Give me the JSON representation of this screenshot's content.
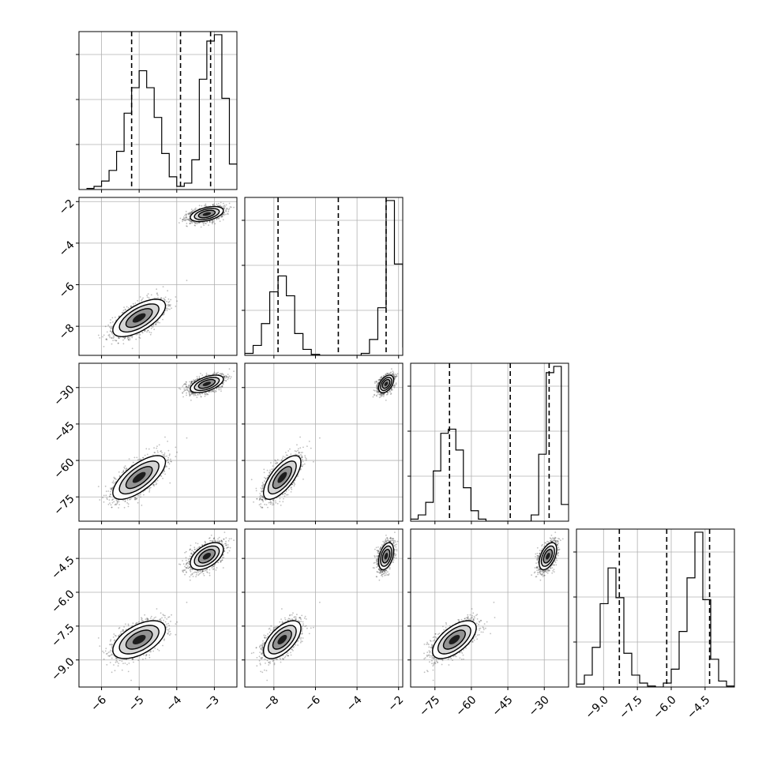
{
  "chart_data": {
    "type": "corner",
    "title": "",
    "grid": true,
    "colors": {
      "line": "#000000",
      "grid": "#b0b0b0",
      "scatter": "#1a1a1a",
      "fill_light": "#d0d0d0",
      "fill_mid": "#8c8c8c",
      "fill_dark": "#111111"
    },
    "parameters": [
      {
        "name": "",
        "range": [
          -6.6,
          -2.4
        ],
        "ticks": [
          -6,
          -5,
          -4,
          -3
        ],
        "tick_labels": [
          "−6",
          "−5",
          "−4",
          "−3"
        ]
      },
      {
        "name": "",
        "range": [
          -9.4,
          -1.8
        ],
        "ticks": [
          -8,
          -6,
          -4,
          -2
        ],
        "tick_labels": [
          "−8",
          "−6",
          "−4",
          "−2"
        ]
      },
      {
        "name": "",
        "range": [
          -85,
          -20
        ],
        "ticks": [
          -75,
          -60,
          -45,
          -30
        ],
        "tick_labels": [
          "−75",
          "−60",
          "−45",
          "−30"
        ]
      },
      {
        "name": "",
        "range": [
          -10.2,
          -3.2
        ],
        "ticks": [
          -9.0,
          -7.5,
          -6.0,
          -4.5
        ],
        "tick_labels": [
          "−9.0",
          "−7.5",
          "−6.0",
          "−4.5"
        ]
      }
    ],
    "quantile_lines": [
      [
        -5.2,
        -3.9,
        -3.1
      ],
      [
        -7.8,
        -4.9,
        -2.6
      ],
      [
        -69.0,
        -44.0,
        -28.0
      ],
      [
        -8.3,
        -6.2,
        -4.3
      ]
    ],
    "histograms": [
      {
        "bin_edges": [
          -6.4,
          -6.2,
          -6.0,
          -5.8,
          -5.6,
          -5.4,
          -5.2,
          -5.0,
          -4.8,
          -4.6,
          -4.4,
          -4.2,
          -4.0,
          -3.8,
          -3.6,
          -3.4,
          -3.2,
          -3.0,
          -2.8,
          -2.6,
          -2.4
        ],
        "counts": [
          0.5,
          1.5,
          4,
          9,
          18,
          36,
          48,
          56,
          48,
          34,
          17,
          6,
          1.5,
          3,
          14,
          52,
          70,
          73,
          43,
          12
        ]
      },
      {
        "bin_edges": [
          -9.4,
          -9.0,
          -8.6,
          -8.2,
          -7.8,
          -7.4,
          -7.0,
          -6.6,
          -6.2,
          -5.8,
          -5.4,
          -5.0,
          -4.6,
          -4.2,
          -3.8,
          -3.4,
          -3.0,
          -2.6,
          -2.2,
          -1.8
        ],
        "counts": [
          1,
          5,
          16,
          32,
          40,
          30,
          11,
          3,
          0.5,
          0,
          0,
          0,
          0,
          0,
          1,
          8,
          24,
          78,
          46,
          4
        ]
      },
      {
        "bin_edges": [
          -85,
          -81.9,
          -78.8,
          -75.7,
          -72.6,
          -69.5,
          -66.4,
          -63.3,
          -60.2,
          -57.1,
          -54.0,
          -50.9,
          -47.8,
          -44.7,
          -41.6,
          -38.5,
          -35.4,
          -32.3,
          -29.2,
          -26.1,
          -23.0,
          -20.0
        ],
        "counts": [
          1,
          3,
          9,
          24,
          42,
          44,
          34,
          16,
          5,
          1,
          0,
          0,
          0,
          0,
          0,
          0,
          3,
          32,
          71,
          74,
          8
        ]
      },
      {
        "bin_edges": [
          -10.2,
          -9.85,
          -9.5,
          -9.15,
          -8.8,
          -8.45,
          -8.1,
          -7.75,
          -7.4,
          -7.05,
          -6.7,
          -6.35,
          -6.0,
          -5.65,
          -5.3,
          -4.95,
          -4.6,
          -4.25,
          -3.9,
          -3.55,
          -3.2
        ],
        "counts": [
          1.5,
          6,
          20,
          42,
          60,
          45,
          17,
          6,
          2,
          0.5,
          0,
          2,
          9,
          28,
          55,
          78,
          44,
          14,
          3,
          0.5
        ]
      }
    ],
    "modes": [
      {
        "weight": 0.48,
        "mean": [
          -5.0,
          -7.6,
          -67.0,
          -8.1
        ],
        "std": [
          0.35,
          0.45,
          4.5,
          0.42
        ],
        "corr": [
          [
            1,
            0.65,
            0.7,
            0.55
          ],
          [
            0.65,
            1,
            0.7,
            0.6
          ],
          [
            0.7,
            0.7,
            1,
            0.62
          ],
          [
            0.55,
            0.6,
            0.62,
            1
          ]
        ]
      },
      {
        "weight": 0.52,
        "mean": [
          -3.2,
          -2.6,
          -28.5,
          -4.4
        ],
        "std": [
          0.22,
          0.18,
          1.8,
          0.3
        ],
        "corr": [
          [
            1,
            0.45,
            0.55,
            0.5
          ],
          [
            0.45,
            1,
            0.45,
            0.4
          ],
          [
            0.55,
            0.45,
            1,
            0.5
          ],
          [
            0.5,
            0.4,
            0.5,
            1
          ]
        ]
      }
    ]
  }
}
